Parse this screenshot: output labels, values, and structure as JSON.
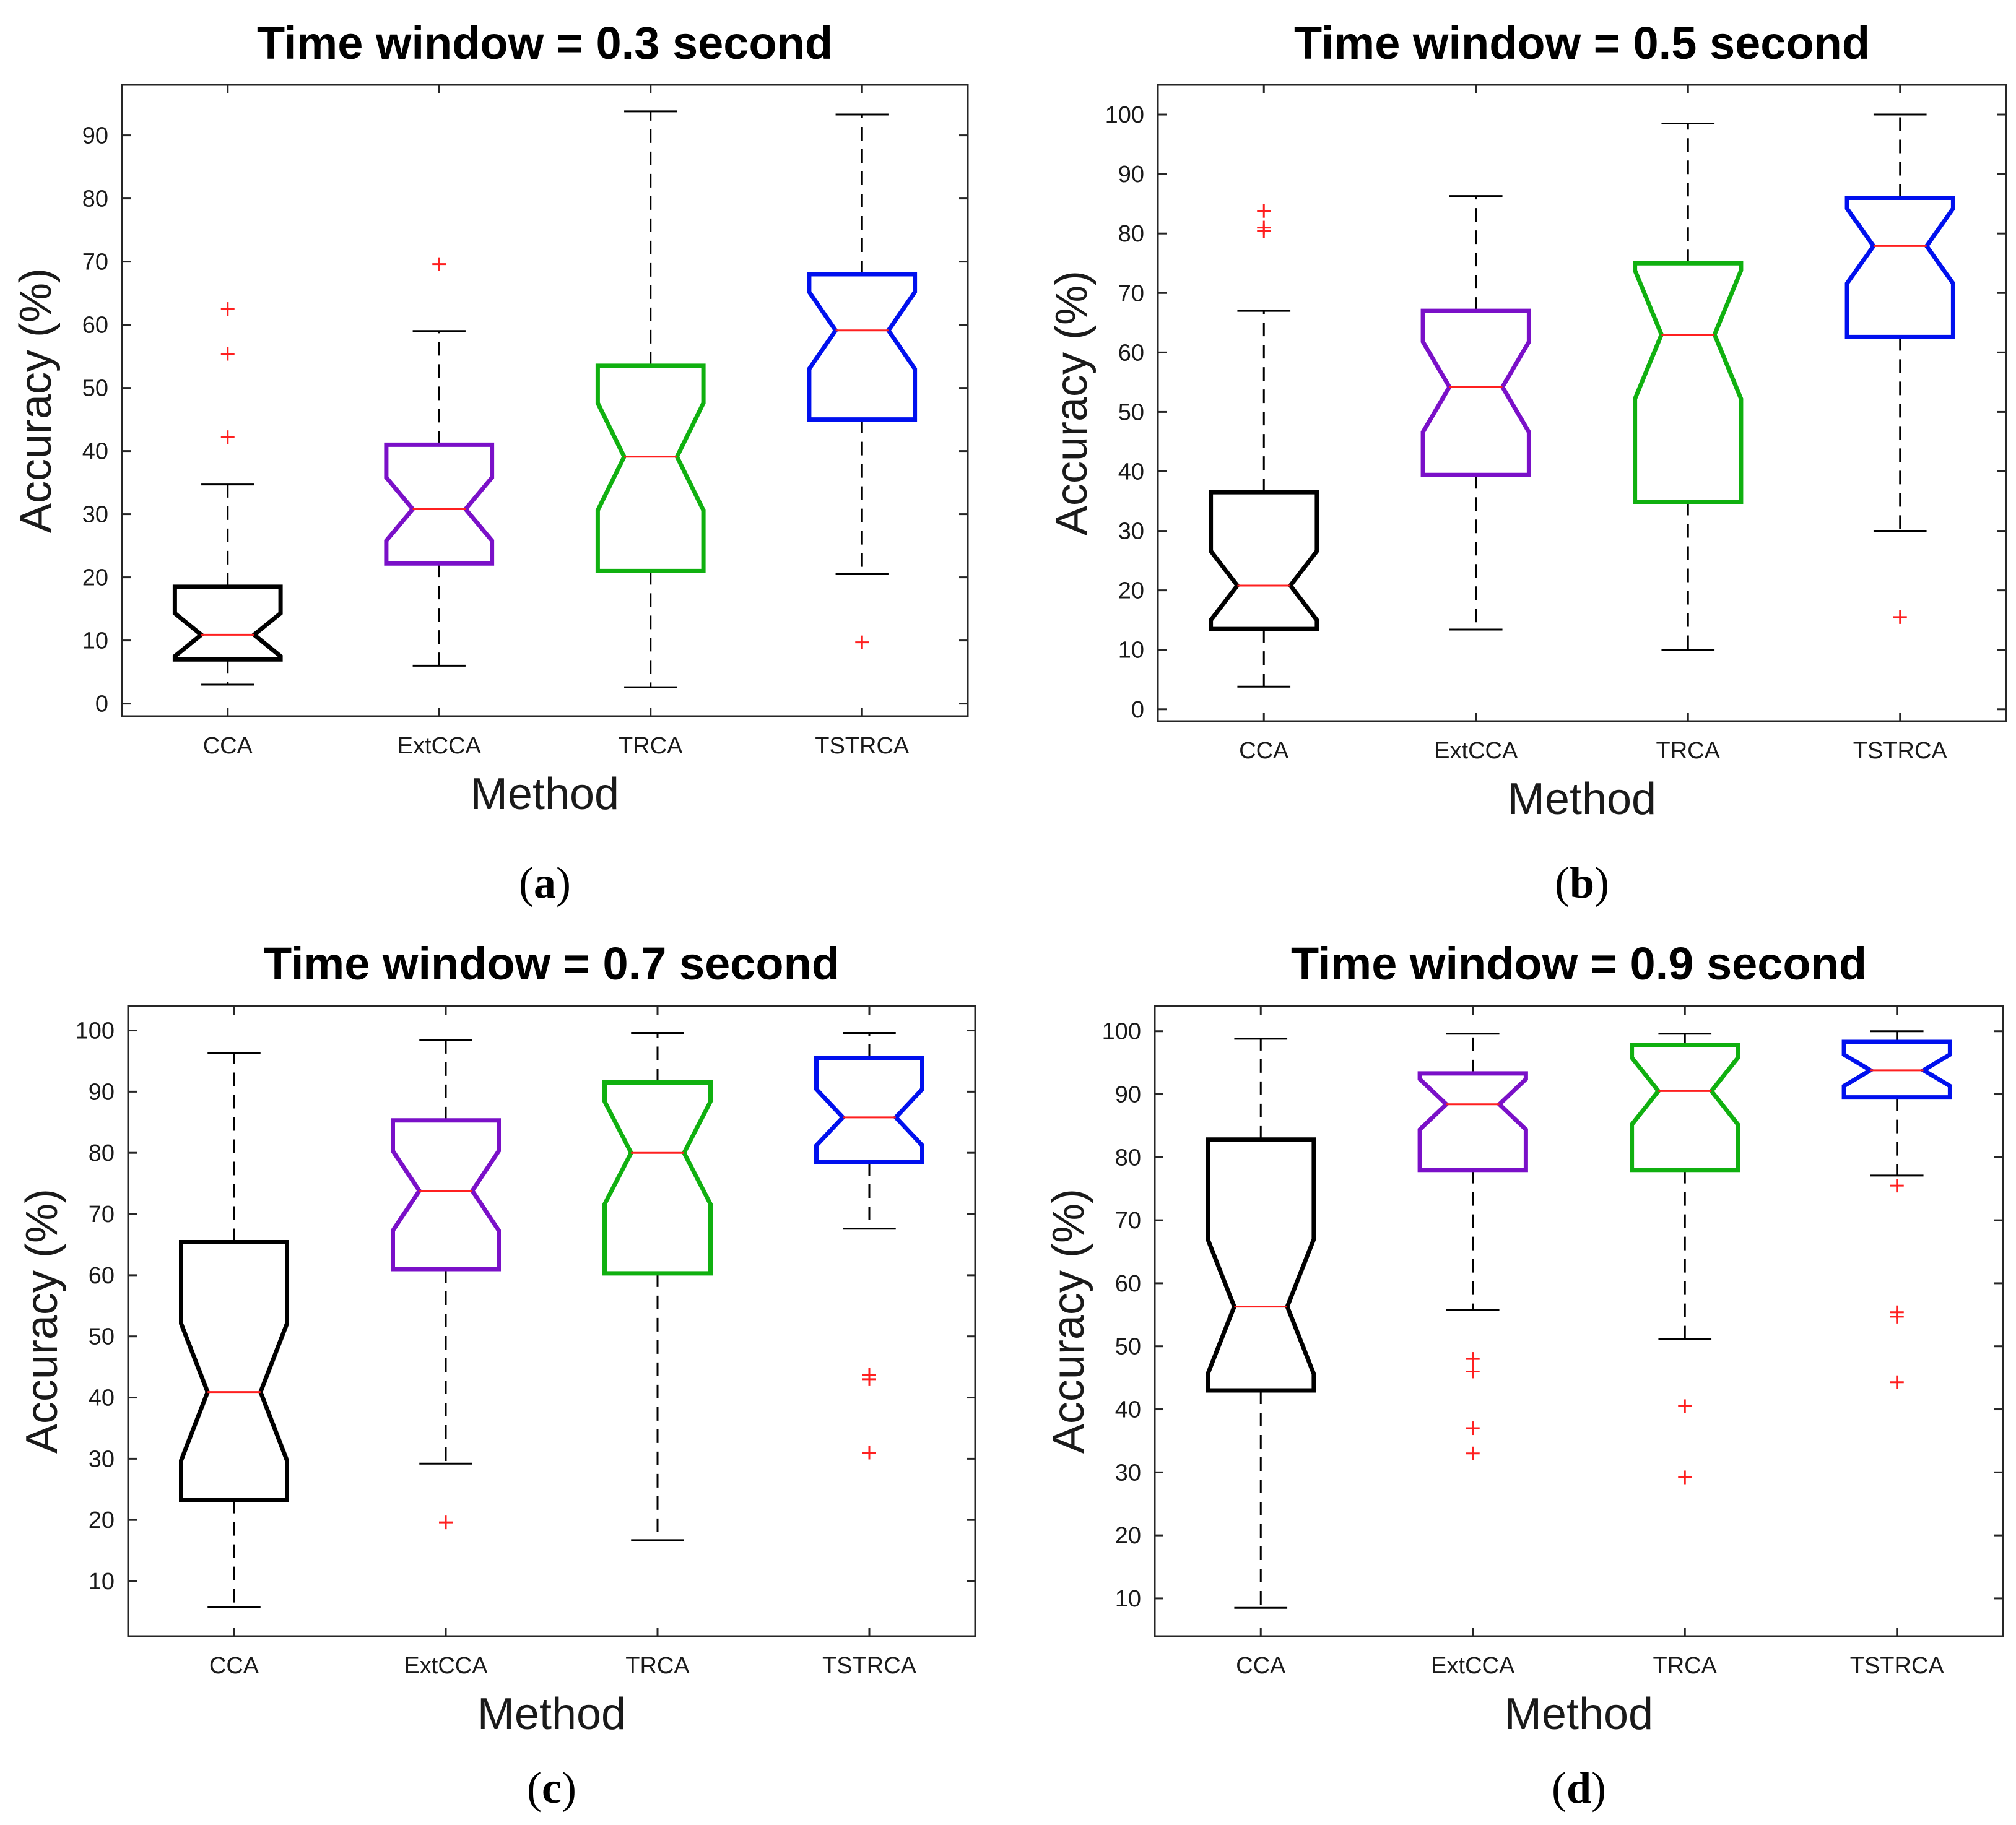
{
  "chart_data": [
    {
      "type": "boxplot",
      "panel_label": "a",
      "title": "Time window = 0.3 second",
      "xlabel": "Method",
      "ylabel": "Accuracy (%)",
      "categories": [
        "CCA",
        "ExtCCA",
        "TRCA",
        "TSTRCA"
      ],
      "ylim": [
        -2,
        98
      ],
      "yticks": [
        0,
        10,
        20,
        30,
        40,
        50,
        60,
        70,
        80,
        90
      ],
      "boxes": [
        {
          "category": "CCA",
          "color": "#000000",
          "whisker_low": 3,
          "q1": 7,
          "notch_low": 7.5,
          "median": 10.9,
          "notch_high": 14.3,
          "q3": 18.5,
          "whisker_high": 34.7,
          "outliers": [
            62.5,
            55.4,
            42.2
          ]
        },
        {
          "category": "ExtCCA",
          "color": "#7a10c8",
          "whisker_low": 6,
          "q1": 22.2,
          "notch_low": 25.8,
          "median": 30.8,
          "notch_high": 35.8,
          "q3": 41,
          "whisker_high": 59,
          "outliers": [
            69.6
          ]
        },
        {
          "category": "TRCA",
          "color": "#10b010",
          "whisker_low": 2.6,
          "q1": 21,
          "notch_low": 30.6,
          "median": 39.1,
          "notch_high": 47.6,
          "q3": 53.5,
          "whisker_high": 93.8,
          "outliers": []
        },
        {
          "category": "TSTRCA",
          "color": "#0010ee",
          "whisker_low": 20.5,
          "q1": 45,
          "notch_low": 53,
          "median": 59.1,
          "notch_high": 65.2,
          "q3": 68,
          "whisker_high": 93.3,
          "outliers": [
            9.7
          ]
        }
      ]
    },
    {
      "type": "boxplot",
      "panel_label": "b",
      "title": "Time window = 0.5 second",
      "xlabel": "Method",
      "ylabel": "Accuracy (%)",
      "categories": [
        "CCA",
        "ExtCCA",
        "TRCA",
        "TSTRCA"
      ],
      "ylim": [
        -2,
        105
      ],
      "yticks": [
        0,
        10,
        20,
        30,
        40,
        50,
        60,
        70,
        80,
        90,
        100
      ],
      "boxes": [
        {
          "category": "CCA",
          "color": "#000000",
          "whisker_low": 3.8,
          "q1": 13.5,
          "notch_low": 15,
          "median": 20.8,
          "notch_high": 26.6,
          "q3": 36.5,
          "whisker_high": 67,
          "outliers": [
            83.8,
            81,
            80.4
          ]
        },
        {
          "category": "ExtCCA",
          "color": "#7a10c8",
          "whisker_low": 13.4,
          "q1": 39.4,
          "notch_low": 46.6,
          "median": 54.2,
          "notch_high": 61.8,
          "q3": 67,
          "whisker_high": 86.3,
          "outliers": []
        },
        {
          "category": "TRCA",
          "color": "#10b010",
          "whisker_low": 10,
          "q1": 34.9,
          "notch_low": 52.2,
          "median": 63,
          "notch_high": 73.8,
          "q3": 75,
          "whisker_high": 98.5,
          "outliers": []
        },
        {
          "category": "TSTRCA",
          "color": "#0010ee",
          "whisker_low": 30,
          "q1": 62.6,
          "notch_low": 71.6,
          "median": 77.9,
          "notch_high": 84.2,
          "q3": 86,
          "whisker_high": 100,
          "outliers": [
            15.5
          ]
        }
      ]
    },
    {
      "type": "boxplot",
      "panel_label": "c",
      "title": "Time window = 0.7 second",
      "xlabel": "Method",
      "ylabel": "Accuracy (%)",
      "categories": [
        "CCA",
        "ExtCCA",
        "TRCA",
        "TSTRCA"
      ],
      "ylim": [
        1,
        104
      ],
      "yticks": [
        10,
        20,
        30,
        40,
        50,
        60,
        70,
        80,
        90,
        100
      ],
      "boxes": [
        {
          "category": "CCA",
          "color": "#000000",
          "whisker_low": 5.8,
          "q1": 23.3,
          "notch_low": 29.7,
          "median": 40.9,
          "notch_high": 52.1,
          "q3": 65.4,
          "whisker_high": 96.3,
          "outliers": []
        },
        {
          "category": "ExtCCA",
          "color": "#7a10c8",
          "whisker_low": 29.2,
          "q1": 61,
          "notch_low": 67.3,
          "median": 73.8,
          "notch_high": 80.3,
          "q3": 85.3,
          "whisker_high": 98.4,
          "outliers": [
            19.6
          ]
        },
        {
          "category": "TRCA",
          "color": "#10b010",
          "whisker_low": 16.7,
          "q1": 60.3,
          "notch_low": 71.6,
          "median": 80,
          "notch_high": 88.4,
          "q3": 91.5,
          "whisker_high": 99.6,
          "outliers": []
        },
        {
          "category": "TSTRCA",
          "color": "#0010ee",
          "whisker_low": 67.6,
          "q1": 78.5,
          "notch_low": 81.2,
          "median": 85.8,
          "notch_high": 90.4,
          "q3": 95.5,
          "whisker_high": 99.6,
          "outliers": [
            43.7,
            43,
            31
          ]
        }
      ]
    },
    {
      "type": "boxplot",
      "panel_label": "d",
      "title": "Time window = 0.9 second",
      "xlabel": "Method",
      "ylabel": "Accuracy (%)",
      "categories": [
        "CCA",
        "ExtCCA",
        "TRCA",
        "TSTRCA"
      ],
      "ylim": [
        4,
        104
      ],
      "yticks": [
        10,
        20,
        30,
        40,
        50,
        60,
        70,
        80,
        90,
        100
      ],
      "boxes": [
        {
          "category": "CCA",
          "color": "#000000",
          "whisker_low": 8.5,
          "q1": 43,
          "notch_low": 45.6,
          "median": 56.3,
          "notch_high": 67,
          "q3": 82.8,
          "whisker_high": 98.8,
          "outliers": []
        },
        {
          "category": "ExtCCA",
          "color": "#7a10c8",
          "whisker_low": 55.8,
          "q1": 78,
          "notch_low": 84.4,
          "median": 88.4,
          "notch_high": 92.4,
          "q3": 93.3,
          "whisker_high": 99.6,
          "outliers": [
            48,
            46,
            37,
            33
          ]
        },
        {
          "category": "TRCA",
          "color": "#10b010",
          "whisker_low": 51.2,
          "q1": 78,
          "notch_low": 85.2,
          "median": 90.5,
          "notch_high": 95.8,
          "q3": 97.8,
          "whisker_high": 99.6,
          "outliers": [
            40.5,
            29.2
          ]
        },
        {
          "category": "TSTRCA",
          "color": "#0010ee",
          "whisker_low": 77.1,
          "q1": 89.5,
          "notch_low": 91.3,
          "median": 93.8,
          "notch_high": 96.3,
          "q3": 98.3,
          "whisker_high": 100,
          "outliers": [
            75.5,
            55.4,
            54.7,
            44.3
          ]
        }
      ]
    }
  ]
}
